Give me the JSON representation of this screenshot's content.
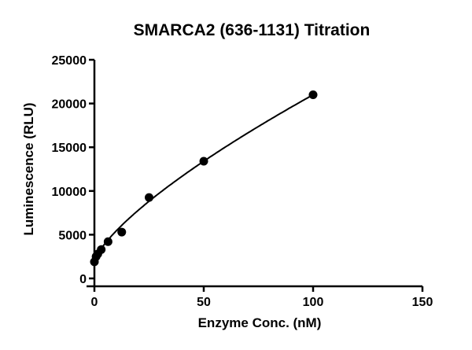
{
  "chart_data": {
    "type": "scatter",
    "title": "SMARCA2 (636-1131) Titration",
    "xlabel": "Enzyme Conc. (nM)",
    "ylabel": "Luminescence (RLU)",
    "xlim": [
      0,
      150
    ],
    "ylim": [
      0,
      25000
    ],
    "xticks": [
      0,
      50,
      100,
      150
    ],
    "yticks": [
      0,
      5000,
      10000,
      15000,
      20000,
      25000
    ],
    "grid": false,
    "points": {
      "x": [
        0,
        0.78,
        1.56,
        3.125,
        6.25,
        12.5,
        25,
        50,
        100
      ],
      "y": [
        1900,
        2500,
        2800,
        3300,
        4200,
        5300,
        9250,
        13400,
        21000
      ]
    },
    "fit_curve": true,
    "marker_color": "#000000"
  }
}
